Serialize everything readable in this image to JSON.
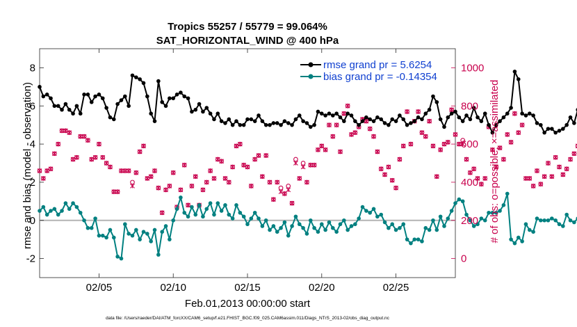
{
  "chart_data": {
    "type": "line",
    "title": "Tropics 55257 / 55779 = 99.064%",
    "subtitle": "SAT_HORIZONTAL_WIND @ 400 hPa",
    "xlabel": "Feb.01,2013 00:00:00 start",
    "ylabel_left": "rmse and bias (model - observation)",
    "ylabel_right": "# of obs: o=possible; ×=assimilated",
    "xlim": [
      1,
      29
    ],
    "ylim_left": [
      -3,
      9
    ],
    "ylim_right": [
      -100,
      1100
    ],
    "x_ticks": [
      5,
      10,
      15,
      20,
      25
    ],
    "x_tick_labels": [
      "02/05",
      "02/10",
      "02/15",
      "02/20",
      "02/25"
    ],
    "y_ticks_left": [
      -2,
      0,
      2,
      4,
      6,
      8
    ],
    "y_ticks_right": [
      0,
      200,
      400,
      600,
      800,
      1000
    ],
    "reference_line": 0,
    "colors": {
      "rmse": "#000000",
      "bias": "#008080",
      "obs": "#c8004c",
      "zero_line": "#b4b4b4"
    },
    "legend": {
      "position": "top-right",
      "entries": [
        "rmse grand pr = 5.6254",
        "bias grand pr = -0.14354"
      ]
    },
    "footer": "data file: /Users/raeder/DAI/ATM_forcXX/CAM6_setup/f.e21.FHIST_BGC.f09_025.CAM6assim.011/Diags_NTrS_2013-02/obs_diag_output.nc",
    "series": [
      {
        "name": "rmse",
        "x_start": 1.0,
        "x_step": 0.25,
        "values": [
          7.0,
          6.5,
          6.6,
          6.4,
          6.0,
          6.0,
          5.8,
          6.1,
          5.8,
          5.6,
          6.0,
          5.6,
          6.6,
          6.6,
          6.2,
          6.5,
          6.6,
          6.4,
          5.9,
          5.4,
          5.3,
          6.1,
          6.3,
          6.5,
          6.0,
          7.6,
          7.5,
          7.4,
          7.2,
          6.5,
          5.6,
          5.2,
          7.3,
          6.2,
          6.0,
          6.4,
          6.4,
          6.6,
          6.7,
          6.5,
          6.4,
          5.7,
          5.8,
          6.1,
          5.7,
          5.9,
          5.6,
          5.3,
          5.6,
          5.2,
          5.1,
          5.3,
          5.0,
          5.2,
          5.0,
          5.0,
          5.3,
          5.3,
          5.2,
          5.5,
          5.2,
          5.0,
          5.0,
          5.1,
          5.1,
          5.0,
          5.2,
          5.1,
          5.0,
          5.3,
          5.5,
          5.2,
          5.1,
          4.9,
          5.0,
          5.7,
          5.6,
          5.5,
          5.6,
          5.5,
          5.6,
          5.4,
          5.2,
          5.6,
          5.5,
          5.2,
          5.0,
          5.2,
          5.4,
          5.3,
          5.2,
          5.4,
          5.3,
          5.1,
          5.0,
          5.3,
          5.2,
          5.5,
          5.3,
          5.0,
          5.1,
          5.2,
          5.4,
          5.3,
          5.6,
          5.8,
          6.5,
          6.2,
          5.3,
          4.9,
          5.4,
          5.6,
          5.7,
          5.4,
          5.2,
          5.5,
          5.3,
          5.9,
          5.4,
          5.2,
          5.6,
          5.0,
          4.6,
          5.0,
          5.2,
          5.4,
          5.6,
          5.9,
          7.8,
          7.4,
          5.6,
          5.5,
          5.6,
          5.5,
          5.1,
          5.0,
          4.6,
          4.8,
          4.8,
          4.6,
          4.7,
          4.8,
          5.0,
          5.4,
          5.1,
          5.8,
          5.8,
          5.8,
          5.7,
          5.6
        ]
      },
      {
        "name": "bias",
        "x_start": 1.0,
        "x_step": 0.25,
        "values": [
          0.5,
          0.7,
          0.3,
          0.5,
          0.6,
          0.3,
          0.5,
          0.9,
          0.6,
          0.9,
          0.7,
          0.4,
          0.0,
          -0.4,
          -0.4,
          0.1,
          -0.8,
          -0.8,
          -0.9,
          -0.5,
          -0.9,
          -1.9,
          -2.0,
          -0.2,
          -0.7,
          -0.8,
          -0.5,
          -1.0,
          -0.6,
          -0.7,
          -1.1,
          -0.5,
          -1.8,
          -0.6,
          -0.3,
          -1.0,
          0.0,
          0.6,
          1.2,
          0.4,
          0.2,
          0.7,
          0.3,
          0.8,
          0.2,
          0.6,
          0.9,
          0.3,
          0.9,
          0.5,
          0.8,
          0.3,
          0.1,
          0.8,
          0.4,
          0.2,
          -0.2,
          0.1,
          0.4,
          0.1,
          -0.3,
          0.0,
          -0.5,
          -0.3,
          -0.6,
          -0.4,
          -0.1,
          -0.8,
          -0.3,
          0.2,
          -0.2,
          -0.4,
          -0.7,
          0.0,
          -0.4,
          -0.6,
          -0.2,
          -0.5,
          -0.1,
          -0.4,
          -0.6,
          -0.2,
          0.0,
          -0.5,
          -0.3,
          -0.2,
          0.1,
          0.7,
          0.5,
          0.4,
          0.6,
          0.2,
          0.3,
          -0.1,
          -0.4,
          -0.2,
          -0.5,
          -0.4,
          -0.2,
          -1.0,
          -1.2,
          -1.0,
          -1.0,
          -1.1,
          -0.4,
          -0.5,
          0.0,
          -0.5,
          0.2,
          -0.3,
          0.1,
          0.5,
          0.9,
          1.1,
          1.0,
          0.3,
          0.0,
          -0.3,
          -0.2,
          0.1,
          0.0,
          0.4,
          0.4,
          0.4,
          0.5,
          0.8,
          1.4,
          -1.0,
          -1.2,
          -0.9,
          -1.1,
          -0.2,
          -0.5,
          -0.6,
          0.1,
          0.0,
          0.0,
          0.0,
          0.1,
          0.0,
          -0.2,
          -0.3,
          0.3,
          0.0,
          -0.1,
          0.1,
          0.0,
          -0.5,
          0.0
        ]
      },
      {
        "name": "obs_possible",
        "axis": "right",
        "x_start": 1.0,
        "x_step": 0.25,
        "values": [
          460,
          420,
          460,
          470,
          550,
          600,
          670,
          670,
          660,
          520,
          530,
          640,
          640,
          620,
          520,
          530,
          600,
          530,
          500,
          480,
          350,
          350,
          460,
          460,
          460,
          400,
          450,
          560,
          590,
          420,
          430,
          460,
          370,
          240,
          360,
          380,
          450,
          270,
          360,
          490,
          280,
          380,
          430,
          280,
          360,
          400,
          460,
          420,
          520,
          510,
          420,
          400,
          480,
          590,
          600,
          490,
          480,
          380,
          520,
          540,
          430,
          540,
          400,
          310,
          400,
          370,
          340,
          380,
          290,
          520,
          420,
          500,
          400,
          490,
          490,
          570,
          590,
          570,
          700,
          640,
          700,
          560,
          760,
          800,
          650,
          660,
          690,
          730,
          720,
          680,
          640,
          560,
          470,
          440,
          480,
          410,
          370,
          520,
          590,
          770,
          600,
          720,
          770,
          660,
          640,
          720,
          590,
          430,
          570,
          600,
          610,
          780,
          650,
          600,
          620,
          520,
          450,
          470,
          420,
          390,
          420,
          690,
          570,
          480,
          580,
          520,
          650,
          610,
          760,
          660,
          700,
          420,
          420,
          380,
          460,
          390,
          430,
          500,
          430,
          530,
          480,
          440,
          470,
          520,
          550,
          590,
          500,
          540,
          700,
          730,
          0
        ]
      },
      {
        "name": "obs_assimilated",
        "axis": "right",
        "x_start": 1.0,
        "x_step": 0.25,
        "values": [
          460,
          420,
          460,
          470,
          550,
          600,
          670,
          670,
          660,
          520,
          530,
          640,
          640,
          620,
          520,
          530,
          600,
          530,
          500,
          480,
          350,
          350,
          460,
          460,
          460,
          380,
          450,
          560,
          590,
          420,
          430,
          460,
          370,
          240,
          360,
          380,
          450,
          270,
          360,
          490,
          280,
          380,
          430,
          280,
          360,
          400,
          460,
          420,
          520,
          510,
          420,
          400,
          480,
          590,
          600,
          490,
          480,
          380,
          520,
          540,
          430,
          540,
          400,
          310,
          400,
          350,
          340,
          360,
          290,
          500,
          420,
          480,
          400,
          490,
          490,
          570,
          590,
          570,
          700,
          640,
          700,
          560,
          760,
          800,
          650,
          660,
          690,
          730,
          720,
          680,
          640,
          560,
          470,
          440,
          480,
          410,
          370,
          520,
          590,
          770,
          600,
          720,
          770,
          660,
          640,
          720,
          590,
          430,
          570,
          600,
          610,
          780,
          650,
          600,
          600,
          520,
          450,
          470,
          420,
          390,
          420,
          690,
          570,
          480,
          580,
          520,
          650,
          610,
          760,
          660,
          700,
          420,
          420,
          380,
          460,
          390,
          430,
          500,
          430,
          530,
          480,
          440,
          470,
          520,
          550,
          590,
          500,
          540,
          700,
          730,
          0
        ]
      }
    ]
  }
}
